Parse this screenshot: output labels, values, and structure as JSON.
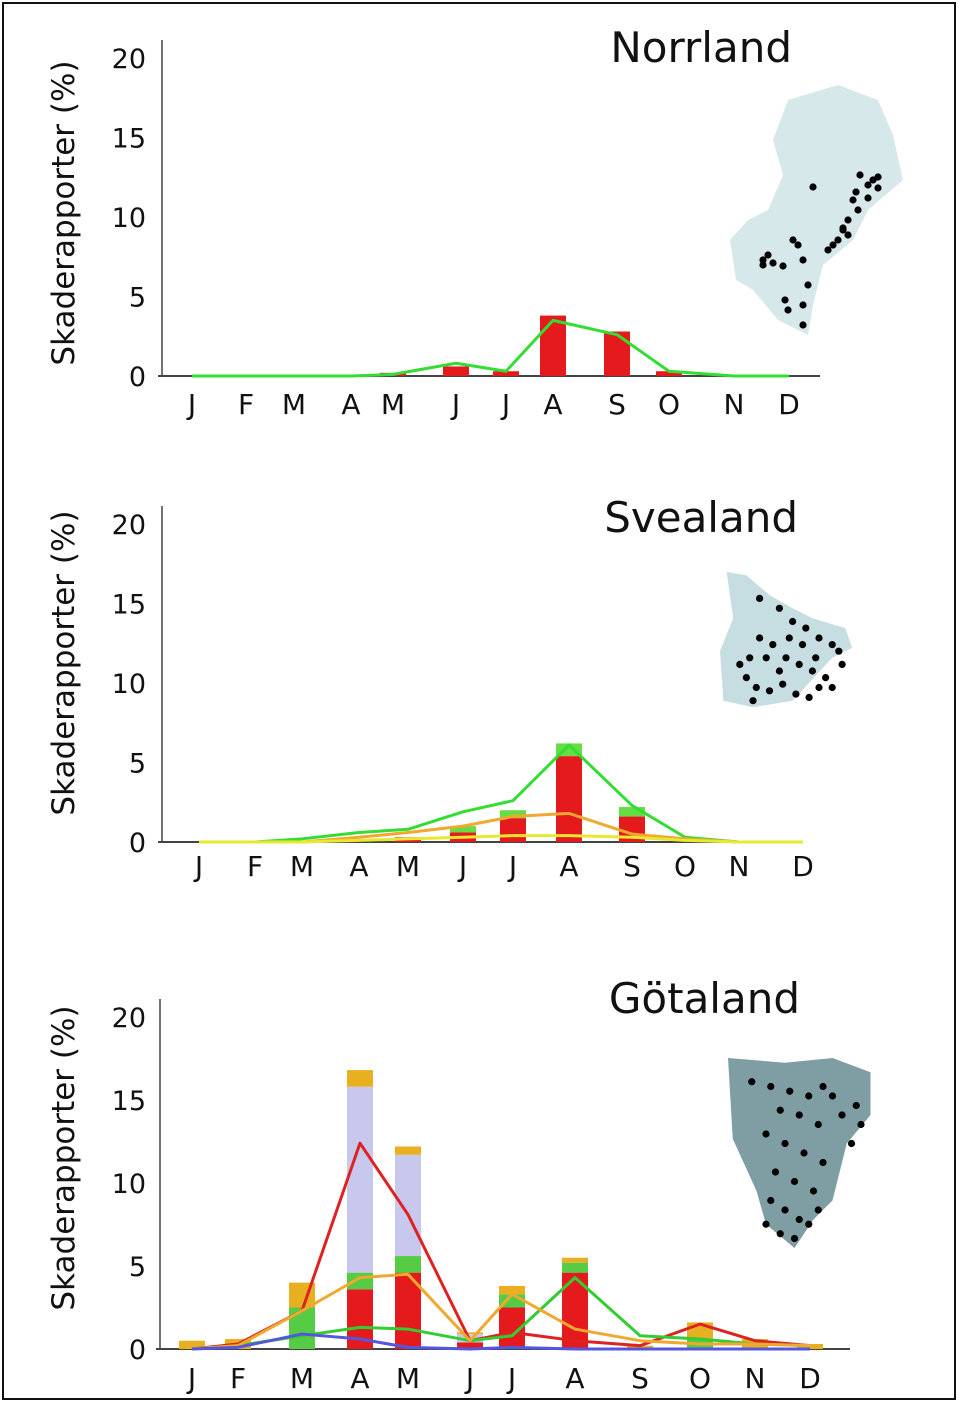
{
  "chart_data": [
    {
      "type": "bar",
      "title": "Norrland",
      "ylabel": "Skaderapporter (%)",
      "yticks": [
        "0",
        "5",
        "10",
        "15",
        "20"
      ],
      "ylim": [
        0,
        20
      ],
      "categories": [
        "J",
        "F",
        "M",
        "A",
        "M",
        "J",
        "J",
        "A",
        "S",
        "O",
        "N",
        "D"
      ],
      "bar_series": [
        {
          "color": "#e41a1c",
          "values": [
            0,
            0,
            0,
            0,
            0.2,
            0.6,
            0.3,
            3.8,
            2.8,
            0.3,
            0,
            0
          ]
        }
      ],
      "line_series": [
        {
          "color": "#33dd33",
          "values": [
            0,
            0,
            0,
            0,
            0.1,
            0.8,
            0.3,
            3.5,
            2.6,
            0.3,
            0,
            0
          ]
        }
      ],
      "map": {
        "fill": "#d6e8ea",
        "dot_color": "#000000"
      }
    },
    {
      "type": "bar",
      "title": "Svealand",
      "ylabel": "Skaderapporter (%)",
      "yticks": [
        "0",
        "5",
        "10",
        "15",
        "20"
      ],
      "ylim": [
        0,
        20
      ],
      "categories": [
        "J",
        "F",
        "M",
        "A",
        "M",
        "J",
        "J",
        "A",
        "S",
        "O",
        "N",
        "D"
      ],
      "bar_series": [
        {
          "color": "#e41a1c",
          "values": [
            0,
            0,
            0,
            0,
            0.3,
            0.6,
            1.5,
            5.4,
            1.6,
            0,
            0,
            0
          ]
        },
        {
          "color": "#66dd44",
          "values": [
            0,
            0,
            0,
            0,
            0,
            0.4,
            0.5,
            0.8,
            0.6,
            0,
            0,
            0
          ]
        }
      ],
      "line_series": [
        {
          "color": "#33dd33",
          "values": [
            0,
            0,
            0.2,
            0.6,
            0.8,
            1.9,
            2.6,
            6.1,
            2.3,
            0.3,
            0,
            0
          ]
        },
        {
          "color": "#f0a830",
          "values": [
            0,
            0,
            0,
            0.3,
            0.6,
            1.0,
            1.6,
            1.8,
            0.5,
            0.2,
            0,
            0
          ]
        },
        {
          "color": "#e8e830",
          "values": [
            0,
            0,
            0,
            0.1,
            0.2,
            0.3,
            0.4,
            0.4,
            0.3,
            0.1,
            0,
            0
          ]
        }
      ],
      "map": {
        "fill": "#c6dde2",
        "dot_color": "#000000"
      }
    },
    {
      "type": "bar",
      "title": "Götaland",
      "ylabel": "Skaderapporter (%)",
      "yticks": [
        "0",
        "5",
        "10",
        "15",
        "20"
      ],
      "ylim": [
        0,
        20
      ],
      "categories": [
        "J",
        "F",
        "M",
        "A",
        "M",
        "J",
        "J",
        "A",
        "S",
        "O",
        "N",
        "D"
      ],
      "bar_series": [
        {
          "color": "#e41a1c",
          "values": [
            0,
            0,
            0,
            3.6,
            4.6,
            0.4,
            2.5,
            4.6,
            0,
            0,
            0,
            0
          ]
        },
        {
          "color": "#55cc44",
          "values": [
            0,
            0,
            2.5,
            1.0,
            1.0,
            0,
            0.8,
            0.6,
            0,
            0.6,
            0,
            0
          ]
        },
        {
          "color": "#c8c8ee",
          "values": [
            0,
            0,
            0,
            11.2,
            6.1,
            0.5,
            0,
            0,
            0,
            0,
            0,
            0
          ]
        },
        {
          "color": "#e8b020",
          "values": [
            0.5,
            0.6,
            1.5,
            1.0,
            0.5,
            0.1,
            0.5,
            0.3,
            0.2,
            1.0,
            0.6,
            0.3
          ]
        }
      ],
      "line_series": [
        {
          "color": "#dd2222",
          "values": [
            0,
            0.3,
            2.3,
            12.4,
            8.1,
            0.5,
            1.0,
            0.5,
            0.2,
            1.5,
            0.5,
            0.2
          ]
        },
        {
          "color": "#33cc33",
          "values": [
            0,
            0.2,
            0.8,
            1.3,
            1.2,
            0.5,
            0.8,
            4.3,
            0.8,
            0.6,
            0.3,
            0.2
          ]
        },
        {
          "color": "#f0a830",
          "values": [
            0,
            0.2,
            2.3,
            4.3,
            4.5,
            0.5,
            3.3,
            1.2,
            0.5,
            0.3,
            0.3,
            0.2
          ]
        },
        {
          "color": "#5555dd",
          "values": [
            0,
            0.1,
            0.9,
            0.6,
            0.1,
            0,
            0.1,
            0,
            0,
            0,
            0,
            0
          ]
        }
      ],
      "map": {
        "fill": "#7f9ea4",
        "dot_color": "#000000"
      }
    }
  ]
}
